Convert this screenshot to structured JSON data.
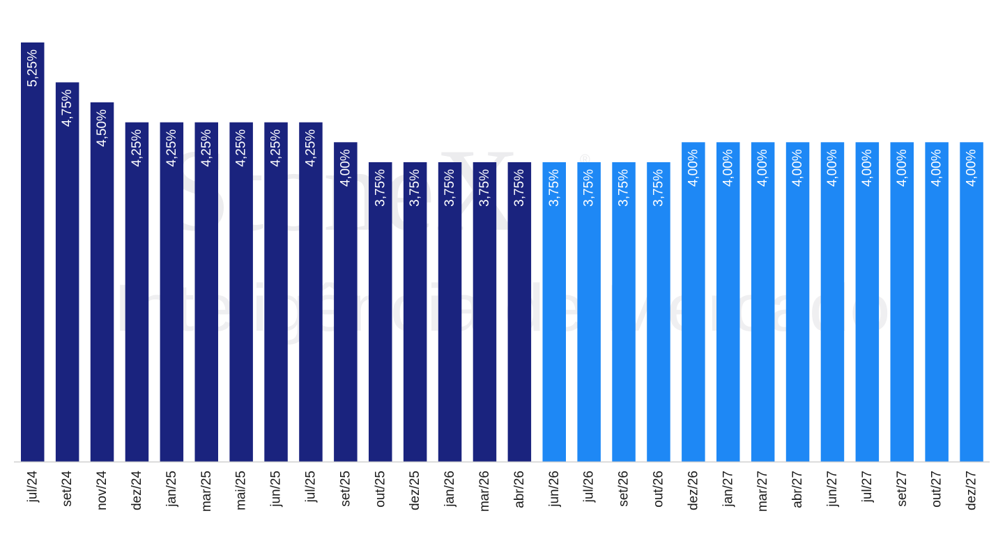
{
  "watermark": {
    "brand": "StoneX",
    "registered": "®",
    "tagline": "Inteligência de Mercado"
  },
  "colors": {
    "realized": "#1a237e",
    "projected": "#1e88f5",
    "label": "#ffffff",
    "axis": "#cfcfcf"
  },
  "chart_data": {
    "type": "bar",
    "title": "",
    "xlabel": "",
    "ylabel": "",
    "ylim": [
      0,
      5.25
    ],
    "grid": false,
    "categories": [
      "jul/24",
      "set/24",
      "nov/24",
      "dez/24",
      "jan/25",
      "mar/25",
      "mai/25",
      "jun/25",
      "jul/25",
      "set/25",
      "out/25",
      "dez/25",
      "jan/26",
      "mar/26",
      "abr/26",
      "jun/26",
      "jul/26",
      "set/26",
      "out/26",
      "dez/26",
      "jan/27",
      "mar/27",
      "abr/27",
      "jun/27",
      "jul/27",
      "set/27",
      "out/27",
      "dez/27"
    ],
    "values": [
      5.25,
      4.75,
      4.5,
      4.25,
      4.25,
      4.25,
      4.25,
      4.25,
      4.25,
      4.0,
      3.75,
      3.75,
      3.75,
      3.75,
      3.75,
      3.75,
      3.75,
      3.75,
      3.75,
      4.0,
      4.0,
      4.0,
      4.0,
      4.0,
      4.0,
      4.0,
      4.0,
      4.0
    ],
    "data_labels": [
      "5,25%",
      "4,75%",
      "4,50%",
      "4,25%",
      "4,25%",
      "4,25%",
      "4,25%",
      "4,25%",
      "4,25%",
      "4,00%",
      "3,75%",
      "3,75%",
      "3,75%",
      "3,75%",
      "3,75%",
      "3,75%",
      "3,75%",
      "3,75%",
      "3,75%",
      "4,00%",
      "4,00%",
      "4,00%",
      "4,00%",
      "4,00%",
      "4,00%",
      "4,00%",
      "4,00%",
      "4,00%"
    ],
    "projected_from_index": 15
  }
}
